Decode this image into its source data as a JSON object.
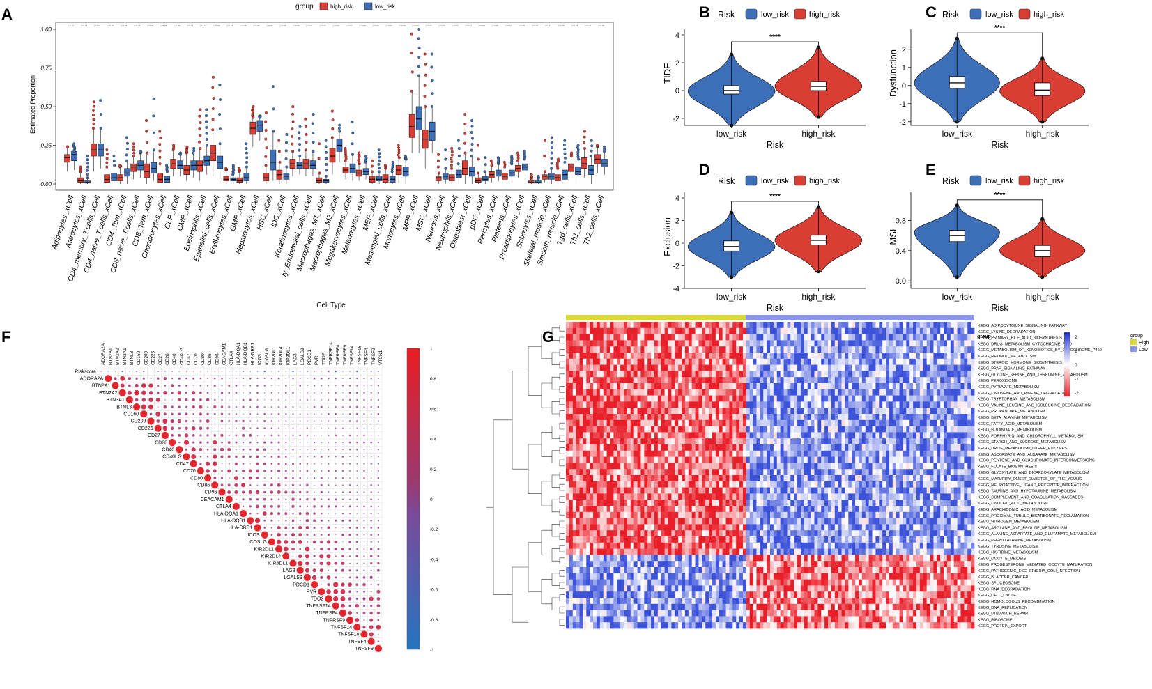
{
  "colors": {
    "high": "#d93d34",
    "low": "#3d6fb8",
    "heat_high": "#e81f29",
    "heat_low": "#3b52d9",
    "group_high": "#d9d93a",
    "group_low": "#8c96e8"
  },
  "panels": {
    "A": {
      "label": "A",
      "legend_title": "group",
      "legend_high": "high_risk",
      "legend_low": "low_risk",
      "ylabel": "Estimated Proportion",
      "xlabel": "Cell Type"
    },
    "B": {
      "label": "B",
      "ylabel": "TIDE"
    },
    "C": {
      "label": "C",
      "ylabel": "Dysfunction"
    },
    "D": {
      "label": "D",
      "ylabel": "Exclusion"
    },
    "E": {
      "label": "E",
      "ylabel": "MSI"
    },
    "F": {
      "label": "F"
    },
    "G": {
      "label": "G",
      "legend_title": "group",
      "legend_high": "High",
      "legend_low": "Low",
      "group_label": "group"
    }
  },
  "chart_data": [
    {
      "id": "A",
      "type": "boxplot",
      "title": "",
      "xlabel": "Cell Type",
      "ylabel": "Estimated Proportion",
      "ylim": [
        0,
        1.0
      ],
      "yticks": [
        "0.00",
        "0.25",
        "0.50",
        "0.75",
        "1.00"
      ],
      "legend": {
        "title": "group",
        "entries": [
          "high_risk",
          "low_risk"
        ]
      },
      "categories": [
        "Adipocytes_xCell",
        "Astrocytes_xCell",
        "CD4_memory_T.cells_xCell",
        "CD4_naive_T.cells_xCell",
        "CD4_Tcm_xCell",
        "CD8_naive_T.cells_xCell",
        "CD8_Tem_xCell",
        "Chondrocytes_xCell",
        "CLP_xCell",
        "CMP_xCell",
        "Eosinophils_xCell",
        "Epithelial_cells_xCell",
        "Erythrocytes_xCell",
        "GMP_xCell",
        "Hepatocytes_xCell",
        "HSC_xCell",
        "iDC_xCell",
        "Keratinocytes_xCell",
        "ly_Endothelial_cells_xCell",
        "Macrophages_M1_xCell",
        "Macrophages_M2_xCell",
        "Megakaryocytes_xCell",
        "Melanocytes_xCell",
        "MEP_xCell",
        "Mesangial_cells_xCell",
        "Monocytes_xCell",
        "MPP_xCell",
        "MSC_xCell",
        "Neurons_xCell",
        "Neutrophils_xCell",
        "Osteoblast_xCell",
        "pDC_xCell",
        "Pericytes_xCell",
        "Platelets_xCell",
        "Preadipocytes_xCell",
        "Sebocytes_xCell",
        "Skeletal_muscle_xCell",
        "Smooth_muscle_xCell",
        "Tgd_cells_xCell",
        "Th1_cells_xCell",
        "Th2_cells_xCell"
      ],
      "series": [
        {
          "name": "high_risk",
          "median": [
            0.17,
            0.02,
            0.22,
            0.03,
            0.04,
            0.11,
            0.08,
            0.03,
            0.13,
            0.09,
            0.12,
            0.2,
            0.03,
            0.02,
            0.36,
            0.04,
            0.06,
            0.13,
            0.13,
            0.02,
            0.18,
            0.09,
            0.07,
            0.03,
            0.03,
            0.09,
            0.37,
            0.29,
            0.04,
            0.04,
            0.1,
            0.02,
            0.06,
            0.05,
            0.1,
            0.01,
            0.05,
            0.04,
            0.11,
            0.13,
            0.16
          ],
          "q1": [
            0.14,
            0.01,
            0.18,
            0.01,
            0.02,
            0.08,
            0.04,
            0.01,
            0.1,
            0.06,
            0.08,
            0.15,
            0.02,
            0.01,
            0.32,
            0.02,
            0.03,
            0.1,
            0.1,
            0.01,
            0.14,
            0.07,
            0.05,
            0.01,
            0.01,
            0.06,
            0.3,
            0.23,
            0.02,
            0.02,
            0.06,
            0.01,
            0.04,
            0.03,
            0.08,
            0.005,
            0.03,
            0.02,
            0.08,
            0.1,
            0.13
          ],
          "q3": [
            0.19,
            0.04,
            0.26,
            0.06,
            0.06,
            0.13,
            0.13,
            0.07,
            0.16,
            0.12,
            0.15,
            0.25,
            0.05,
            0.04,
            0.4,
            0.07,
            0.09,
            0.16,
            0.16,
            0.04,
            0.23,
            0.11,
            0.09,
            0.05,
            0.06,
            0.12,
            0.45,
            0.35,
            0.05,
            0.06,
            0.15,
            0.04,
            0.08,
            0.07,
            0.12,
            0.02,
            0.06,
            0.06,
            0.13,
            0.17,
            0.19
          ],
          "wlo": [
            0.08,
            0.0,
            0.08,
            0.0,
            0.0,
            0.03,
            0.0,
            0.0,
            0.05,
            0.02,
            0.02,
            0.05,
            0.0,
            0.0,
            0.24,
            0.0,
            0.0,
            0.05,
            0.05,
            0.0,
            0.06,
            0.03,
            0.02,
            0.0,
            0.0,
            0.01,
            0.2,
            0.1,
            0.0,
            0.0,
            0.0,
            0.0,
            0.01,
            0.0,
            0.04,
            0.0,
            0.01,
            0.0,
            0.04,
            0.04,
            0.07
          ],
          "whi": [
            0.24,
            0.08,
            0.36,
            0.11,
            0.11,
            0.18,
            0.2,
            0.13,
            0.22,
            0.2,
            0.23,
            0.35,
            0.09,
            0.08,
            0.43,
            0.12,
            0.14,
            0.21,
            0.22,
            0.07,
            0.3,
            0.15,
            0.13,
            0.08,
            0.1,
            0.17,
            0.6,
            0.5,
            0.07,
            0.1,
            0.2,
            0.07,
            0.12,
            0.11,
            0.15,
            0.03,
            0.08,
            0.1,
            0.18,
            0.23,
            0.24
          ]
        },
        {
          "name": "low_risk",
          "median": [
            0.19,
            0.01,
            0.22,
            0.04,
            0.07,
            0.12,
            0.1,
            0.03,
            0.12,
            0.12,
            0.15,
            0.14,
            0.03,
            0.04,
            0.38,
            0.14,
            0.05,
            0.12,
            0.12,
            0.02,
            0.25,
            0.1,
            0.08,
            0.03,
            0.03,
            0.08,
            0.42,
            0.34,
            0.05,
            0.06,
            0.08,
            0.03,
            0.07,
            0.07,
            0.11,
            0.01,
            0.05,
            0.06,
            0.08,
            0.09,
            0.13
          ],
          "q1": [
            0.15,
            0.005,
            0.18,
            0.02,
            0.05,
            0.09,
            0.07,
            0.01,
            0.1,
            0.09,
            0.12,
            0.1,
            0.02,
            0.02,
            0.34,
            0.09,
            0.03,
            0.1,
            0.1,
            0.01,
            0.21,
            0.07,
            0.06,
            0.02,
            0.01,
            0.05,
            0.35,
            0.28,
            0.03,
            0.04,
            0.05,
            0.02,
            0.05,
            0.05,
            0.09,
            0.005,
            0.03,
            0.03,
            0.06,
            0.06,
            0.11
          ],
          "q3": [
            0.21,
            0.02,
            0.26,
            0.07,
            0.1,
            0.15,
            0.14,
            0.05,
            0.15,
            0.15,
            0.18,
            0.18,
            0.04,
            0.07,
            0.41,
            0.22,
            0.07,
            0.14,
            0.15,
            0.03,
            0.29,
            0.13,
            0.1,
            0.05,
            0.05,
            0.11,
            0.5,
            0.4,
            0.07,
            0.09,
            0.11,
            0.05,
            0.09,
            0.09,
            0.13,
            0.02,
            0.07,
            0.09,
            0.11,
            0.12,
            0.16
          ],
          "wlo": [
            0.09,
            0.0,
            0.1,
            0.0,
            0.0,
            0.04,
            0.02,
            0.0,
            0.05,
            0.04,
            0.06,
            0.03,
            0.0,
            0.0,
            0.28,
            0.02,
            0.0,
            0.06,
            0.05,
            0.0,
            0.14,
            0.02,
            0.03,
            0.0,
            0.0,
            0.0,
            0.2,
            0.2,
            0.0,
            0.0,
            0.0,
            0.0,
            0.02,
            0.01,
            0.05,
            0.0,
            0.0,
            0.0,
            0.0,
            0.0,
            0.06
          ],
          "whi": [
            0.26,
            0.04,
            0.36,
            0.12,
            0.15,
            0.2,
            0.22,
            0.08,
            0.2,
            0.2,
            0.25,
            0.26,
            0.06,
            0.11,
            0.44,
            0.34,
            0.11,
            0.18,
            0.21,
            0.05,
            0.34,
            0.19,
            0.14,
            0.08,
            0.08,
            0.16,
            0.7,
            0.5,
            0.1,
            0.13,
            0.18,
            0.08,
            0.13,
            0.13,
            0.16,
            0.03,
            0.1,
            0.14,
            0.16,
            0.18,
            0.21
          ]
        }
      ],
      "outlier_top": {
        "high_risk": [
          0.24,
          0.11,
          0.53,
          0.22,
          0.12,
          0.26,
          0.41,
          0.34,
          0.25,
          0.24,
          0.48,
          0.69,
          0.1,
          0.1,
          0.5,
          0.46,
          0.28,
          0.5,
          0.42,
          0.26,
          0.47,
          0.23,
          0.2,
          0.15,
          0.12,
          0.25,
          0.97,
          0.84,
          0.19,
          0.23,
          0.45,
          0.25,
          0.15,
          0.14,
          0.2,
          0.06,
          0.28,
          0.16,
          0.2,
          0.34,
          0.25
        ],
        "low_risk": [
          0.21,
          0.18,
          0.54,
          0.18,
          0.3,
          0.21,
          0.55,
          0.12,
          0.19,
          0.23,
          0.48,
          0.64,
          0.12,
          0.26,
          0.43,
          0.63,
          0.32,
          0.37,
          0.45,
          0.28,
          0.38,
          0.4,
          0.18,
          0.22,
          0.14,
          0.18,
          1.0,
          0.84,
          0.22,
          0.28,
          0.41,
          0.17,
          0.17,
          0.18,
          0.21,
          0.05,
          0.3,
          0.28,
          0.25,
          0.28,
          0.24
        ]
      }
    },
    {
      "id": "B",
      "type": "violin",
      "legend": {
        "title": "Risk",
        "entries": [
          "low_risk",
          "high_risk"
        ]
      },
      "categories": [
        "low_risk",
        "high_risk"
      ],
      "xlabel": "Risk",
      "ylabel": "TIDE",
      "ylim": [
        -2.5,
        4.0
      ],
      "yticks": [
        -2,
        0,
        2,
        4
      ],
      "significance": "****",
      "series": [
        {
          "name": "low_risk",
          "min": -2.5,
          "max": 2.6,
          "q1": -0.25,
          "median": 0.0,
          "q3": 0.35,
          "peak": -0.05
        },
        {
          "name": "high_risk",
          "min": -1.9,
          "max": 3.1,
          "q1": 0.0,
          "median": 0.3,
          "q3": 0.65,
          "peak": 0.3
        }
      ]
    },
    {
      "id": "C",
      "type": "violin",
      "legend": {
        "title": "Risk",
        "entries": [
          "low_risk",
          "high_risk"
        ]
      },
      "categories": [
        "low_risk",
        "high_risk"
      ],
      "xlabel": "Risk",
      "ylabel": "Dysfunction",
      "ylim": [
        -2.2,
        2.8
      ],
      "yticks": [
        -2,
        -1,
        0,
        1,
        2
      ],
      "significance": "****",
      "series": [
        {
          "name": "low_risk",
          "min": -2.0,
          "max": 2.6,
          "q1": -0.15,
          "median": 0.15,
          "q3": 0.5,
          "peak": 0.15
        },
        {
          "name": "high_risk",
          "min": -2.0,
          "max": 1.5,
          "q1": -0.55,
          "median": -0.25,
          "q3": 0.15,
          "peak": -0.3
        }
      ]
    },
    {
      "id": "D",
      "type": "violin",
      "legend": {
        "title": "Risk",
        "entries": [
          "low_risk",
          "high_risk"
        ]
      },
      "categories": [
        "low_risk",
        "high_risk"
      ],
      "xlabel": "Risk",
      "ylabel": "Exclusion",
      "ylim": [
        -4.0,
        4.0
      ],
      "yticks": [
        -4,
        -2,
        0,
        2,
        4
      ],
      "significance": "****",
      "series": [
        {
          "name": "low_risk",
          "min": -3.0,
          "max": 2.7,
          "q1": -0.7,
          "median": -0.3,
          "q3": 0.2,
          "peak": -0.3
        },
        {
          "name": "high_risk",
          "min": -2.5,
          "max": 3.2,
          "q1": -0.15,
          "median": 0.25,
          "q3": 0.7,
          "peak": 0.25
        }
      ]
    },
    {
      "id": "E",
      "type": "violin",
      "legend": {
        "title": "Risk",
        "entries": [
          "low_risk",
          "high_risk"
        ]
      },
      "categories": [
        "low_risk",
        "high_risk"
      ],
      "xlabel": "Risk",
      "ylabel": "MSI",
      "ylim": [
        -0.1,
        1.1
      ],
      "yticks": [
        0.0,
        0.4,
        0.8
      ],
      "yticklabels": [
        "0.0",
        "0.4",
        "0.8"
      ],
      "significance": "****",
      "series": [
        {
          "name": "low_risk",
          "min": 0.05,
          "max": 1.0,
          "q1": 0.52,
          "median": 0.6,
          "q3": 0.67,
          "peak": 0.65
        },
        {
          "name": "high_risk",
          "min": 0.05,
          "max": 0.82,
          "q1": 0.32,
          "median": 0.4,
          "q3": 0.47,
          "peak": 0.4
        }
      ]
    },
    {
      "id": "F",
      "type": "correlation_matrix",
      "variables": [
        "Riskscore",
        "ADORA2A",
        "BTN2A1",
        "BTN2A2",
        "BTN3A1",
        "BTNL3",
        "CD160",
        "CD209",
        "CD226",
        "CD27",
        "CD28",
        "CD40",
        "CD40LG",
        "CD47",
        "CD70",
        "CD80",
        "CD86",
        "CD96",
        "CEACAM1",
        "CTLA4",
        "HLA-DQA1",
        "HLA-DQB1",
        "HLA-DRB1",
        "ICOS",
        "ICOSLG",
        "KIR2DL1",
        "KIR2DL4",
        "KIR3DL1",
        "LAG3",
        "LGALS9",
        "PDCD1",
        "PVR",
        "TDO2",
        "TNFRSF14",
        "TNFRSF4",
        "TNFRSF9",
        "TNFSF14",
        "TNFSF18",
        "TNFSF4",
        "TNFSF9",
        "VTCN1"
      ],
      "colorbar": {
        "range": [
          -1,
          1
        ],
        "ticks": [
          "1",
          "0.8",
          "0.6",
          "0.4",
          "0.2",
          "0",
          "-0.2",
          "-0.4",
          "-0.6",
          "-0.8",
          "-1"
        ]
      }
    },
    {
      "id": "G",
      "type": "heatmap",
      "legend": {
        "title": "group",
        "entries": [
          "High",
          "Low"
        ]
      },
      "colorbar_ticks": [
        "2",
        "1",
        "0",
        "-1",
        "-2"
      ],
      "annotation_label": "group",
      "rows": [
        "KEGG_ADIPOCYTOKINE_SIGNALING_PATHWAY",
        "KEGG_LYSINE_DEGRADATION",
        "KEGG_PRIMARY_BILE_ACID_BIOSYNTHESIS",
        "KEGG_DRUG_METABOLISM_CYTOCHROME_P450",
        "KEGG_METABOLISM_OF_XENOBIOTICS_BY_CYTOCHROME_P450",
        "KEGG_RETINOL_METABOLISM",
        "KEGG_STEROID_HORMONE_BIOSYNTHESIS",
        "KEGG_PPAR_SIGNALING_PATHWAY",
        "KEGG_GLYCINE_SERINE_AND_THREONINE_METABOLISM",
        "KEGG_PEROXISOME",
        "KEGG_PYRUVATE_METABOLISM",
        "KEGG_LIMONENE_AND_PINENE_DEGRADATION",
        "KEGG_TRYPTOPHAN_METABOLISM",
        "KEGG_VALINE_LEUCINE_AND_ISOLEUCINE_DEGRADATION",
        "KEGG_PROPANOATE_METABOLISM",
        "KEGG_BETA_ALANINE_METABOLISM",
        "KEGG_FATTY_ACID_METABOLISM",
        "KEGG_BUTANOATE_METABOLISM",
        "KEGG_PORPHYRIN_AND_CHLOROPHYLL_METABOLISM",
        "KEGG_STARCH_AND_SUCROSE_METABOLISM",
        "KEGG_DRUG_METABOLISM_OTHER_ENZYMES",
        "KEGG_ASCORBATE_AND_ALDARATE_METABOLISM",
        "KEGG_PENTOSE_AND_GLUCURONATE_INTERCONVERSIONS",
        "KEGG_FOLATE_BIOSYNTHESIS",
        "KEGG_GLYOXYLATE_AND_DICARBOXYLATE_METABOLISM",
        "KEGG_MATURITY_ONSET_DIABETES_OF_THE_YOUNG",
        "KEGG_NEUROACTIVE_LIGAND_RECEPTOR_INTERACTION",
        "KEGG_TAURINE_AND_HYPOTAURINE_METABOLISM",
        "KEGG_COMPLEMENT_AND_COAGULATION_CASCADES",
        "KEGG_LINOLEIC_ACID_METABOLISM",
        "KEGG_ARACHIDONIC_ACID_METABOLISM",
        "KEGG_PROXIMAL_TUBULE_BICARBONATE_RECLAMATION",
        "KEGG_NITROGEN_METABOLISM",
        "KEGG_ARGININE_AND_PROLINE_METABOLISM",
        "KEGG_ALANINE_ASPARTATE_AND_GLUTAMATE_METABOLISM",
        "KEGG_PHENYLALANINE_METABOLISM",
        "KEGG_TYROSINE_METABOLISM",
        "KEGG_HISTIDINE_METABOLISM",
        "KEGG_OOCYTE_MEIOSIS",
        "KEGG_PROGESTERONE_MEDIATED_OOCYTE_MATURATION",
        "KEGG_PATHOGENIC_ESCHERICHIA_COLI_INFECTION",
        "KEGG_BLADDER_CANCER",
        "KEGG_SPLICEOSOME",
        "KEGG_RNA_DEGRADATION",
        "KEGG_CELL_CYCLE",
        "KEGG_HOMOLOGOUS_RECOMBINATION",
        "KEGG_DNA_REPLICATION",
        "KEGG_MISMATCH_REPAIR",
        "KEGG_RIBOSOME",
        "KEGG_PROTEIN_EXPORT"
      ]
    }
  ]
}
